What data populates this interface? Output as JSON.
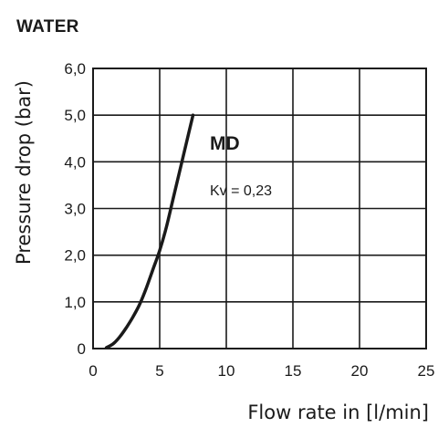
{
  "chart_data": {
    "type": "line",
    "title": "WATER",
    "xlabel": "Flow rate in [l/min]",
    "ylabel": "Pressure drop (bar)",
    "xlim": [
      0,
      25
    ],
    "ylim": [
      0,
      6
    ],
    "xticks": [
      0,
      5,
      10,
      15,
      20,
      25
    ],
    "xtick_labels": [
      "0",
      "5",
      "10",
      "15",
      "20",
      "25"
    ],
    "yticks": [
      0,
      1,
      2,
      3,
      4,
      5,
      6
    ],
    "ytick_labels": [
      "0",
      "1,0",
      "2,0",
      "3,0",
      "4,0",
      "5,0",
      "6,0"
    ],
    "grid": true,
    "series": [
      {
        "name": "MD",
        "annotation": "Kv = 0,23",
        "x": [
          1.0,
          1.5,
          2.0,
          2.5,
          3.0,
          3.5,
          4.0,
          4.5,
          5.0,
          5.5,
          6.0,
          6.5,
          7.0,
          7.5
        ],
        "y": [
          0.02,
          0.1,
          0.25,
          0.45,
          0.68,
          0.95,
          1.3,
          1.7,
          2.1,
          2.6,
          3.2,
          3.8,
          4.4,
          5.0
        ]
      }
    ]
  }
}
